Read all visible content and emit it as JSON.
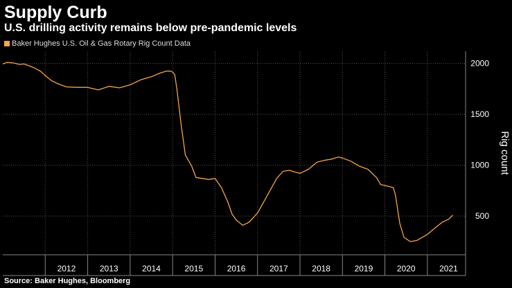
{
  "title": "Supply Curb",
  "subtitle": "U.S. drilling activity remains below pre-pandemic levels",
  "source": "Source: Baker Hughes, Bloomberg",
  "colors": {
    "line": "#f5a54a",
    "background": "#000000",
    "grid": "#555555",
    "text": "#ffffff"
  },
  "chart_data": {
    "type": "line",
    "title": "Supply Curb",
    "subtitle": "U.S. drilling activity remains below pre-pandemic levels",
    "xlabel": "",
    "ylabel": "Rig count",
    "ylim": [
      120,
      2120
    ],
    "xlim": [
      2011.0,
      2021.9
    ],
    "yticks": [
      500,
      1000,
      1500,
      2000
    ],
    "xtick_labels": [
      "2012",
      "2013",
      "2014",
      "2015",
      "2016",
      "2017",
      "2018",
      "2019",
      "2020",
      "2021"
    ],
    "grid": true,
    "legend": "top-left",
    "series": [
      {
        "name": "Baker Hughes U.S. Oil & Gas Rotary Rig Count Data",
        "x": [
          2011.0,
          2011.1,
          2011.25,
          2011.4,
          2011.5,
          2011.6,
          2011.75,
          2011.9,
          2012.0,
          2012.15,
          2012.3,
          2012.5,
          2012.75,
          2013.0,
          2013.25,
          2013.5,
          2013.75,
          2014.0,
          2014.25,
          2014.5,
          2014.7,
          2014.85,
          2014.95,
          2015.0,
          2015.05,
          2015.1,
          2015.2,
          2015.3,
          2015.45,
          2015.55,
          2015.7,
          2015.85,
          2016.0,
          2016.15,
          2016.3,
          2016.4,
          2016.5,
          2016.65,
          2016.8,
          2017.0,
          2017.2,
          2017.45,
          2017.6,
          2017.75,
          2017.9,
          2018.0,
          2018.2,
          2018.4,
          2018.6,
          2018.75,
          2018.9,
          2019.0,
          2019.2,
          2019.4,
          2019.6,
          2019.8,
          2019.9,
          2020.0,
          2020.1,
          2020.2,
          2020.25,
          2020.35,
          2020.45,
          2020.6,
          2020.75,
          2021.0,
          2021.2,
          2021.35,
          2021.5,
          2021.6
        ],
        "values": [
          1995,
          2010,
          2005,
          1990,
          1995,
          1980,
          1955,
          1920,
          1880,
          1830,
          1800,
          1770,
          1765,
          1765,
          1740,
          1775,
          1760,
          1790,
          1840,
          1870,
          1905,
          1925,
          1925,
          1915,
          1890,
          1750,
          1400,
          1100,
          990,
          880,
          870,
          860,
          870,
          780,
          640,
          520,
          460,
          410,
          440,
          530,
          680,
          870,
          940,
          950,
          930,
          920,
          960,
          1030,
          1050,
          1060,
          1080,
          1070,
          1040,
          990,
          960,
          880,
          810,
          800,
          790,
          780,
          700,
          430,
          290,
          250,
          260,
          320,
          390,
          440,
          470,
          510
        ]
      }
    ]
  }
}
